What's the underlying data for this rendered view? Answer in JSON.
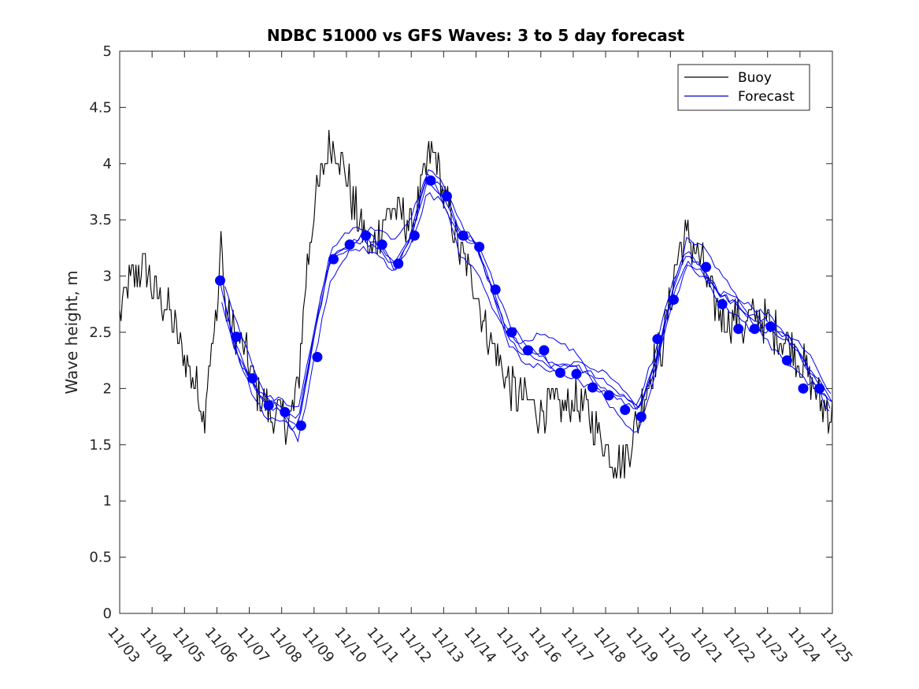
{
  "chart_data": {
    "type": "line",
    "title": "NDBC 51000 vs GFS Waves: 3 to 5 day forecast",
    "xlabel": "",
    "ylabel": "Wave height, m",
    "xlim": [
      0,
      22
    ],
    "ylim": [
      0,
      5
    ],
    "x_ticks": [
      0,
      1,
      2,
      3,
      4,
      5,
      6,
      7,
      8,
      9,
      10,
      11,
      12,
      13,
      14,
      15,
      16,
      17,
      18,
      19,
      20,
      21,
      22
    ],
    "x_tick_labels": [
      "11/03",
      "11/04",
      "11/05",
      "11/06",
      "11/07",
      "11/08",
      "11/09",
      "11/10",
      "11/11",
      "11/12",
      "11/13",
      "11/14",
      "11/15",
      "11/16",
      "11/17",
      "11/18",
      "11/19",
      "11/20",
      "11/21",
      "11/22",
      "11/23",
      "11/24",
      "11/25"
    ],
    "y_ticks": [
      0,
      0.5,
      1,
      1.5,
      2,
      2.5,
      3,
      3.5,
      4,
      4.5,
      5
    ],
    "y_tick_labels": [
      "0",
      "0.5",
      "1",
      "1.5",
      "2",
      "2.5",
      "3",
      "3.5",
      "4",
      "4.5",
      "5"
    ],
    "legend": {
      "position": "top-right",
      "entries": [
        {
          "name": "Buoy",
          "color": "#000000"
        },
        {
          "name": "Forecast",
          "color": "#0000cc"
        }
      ]
    },
    "buoy_color": "#000000",
    "forecast_color": "#0000ee",
    "marker_color": "#0000ff",
    "series": [
      {
        "name": "Buoy",
        "x": [
          0,
          0.25,
          0.5,
          0.75,
          1,
          1.25,
          1.5,
          1.75,
          2,
          2.25,
          2.5,
          2.6,
          2.75,
          3,
          3.05,
          3.1,
          3.25,
          3.5,
          3.75,
          4,
          4.25,
          4.5,
          4.75,
          5,
          5.25,
          5.5,
          5.75,
          6,
          6.25,
          6.5,
          6.75,
          7,
          7.25,
          7.5,
          7.75,
          8,
          8.25,
          8.5,
          8.75,
          9,
          9.25,
          9.5,
          9.75,
          10,
          10.25,
          10.5,
          10.75,
          11,
          11.25,
          11.5,
          11.75,
          12,
          12.25,
          12.5,
          12.75,
          13,
          13.25,
          13.5,
          13.75,
          14,
          14.25,
          14.5,
          14.75,
          15,
          15.25,
          15.5,
          15.75,
          16,
          16.25,
          16.5,
          16.75,
          17,
          17.25,
          17.5,
          17.75,
          18,
          18.25,
          18.5,
          18.75,
          19,
          19.25,
          19.5,
          19.75,
          20,
          20.25,
          20.5,
          20.75,
          21,
          21.25,
          21.5,
          21.75,
          22
        ],
        "values": [
          2.6,
          2.9,
          3.0,
          3.1,
          2.9,
          2.8,
          2.7,
          2.5,
          2.3,
          2.1,
          1.9,
          1.75,
          2.2,
          2.6,
          2.8,
          3.55,
          2.7,
          2.5,
          2.4,
          2.2,
          2.0,
          1.85,
          1.75,
          1.75,
          1.7,
          2.0,
          3.0,
          3.6,
          3.9,
          4.2,
          4.1,
          3.9,
          3.6,
          3.4,
          3.2,
          3.4,
          3.55,
          3.6,
          3.55,
          3.45,
          3.7,
          4.0,
          4.1,
          3.7,
          3.5,
          3.2,
          3.05,
          2.9,
          2.6,
          2.4,
          2.2,
          2.05,
          1.95,
          1.9,
          1.85,
          1.8,
          1.85,
          1.85,
          1.8,
          1.9,
          1.85,
          1.75,
          1.6,
          1.5,
          1.4,
          1.35,
          1.5,
          1.7,
          2.0,
          2.2,
          2.4,
          2.8,
          3.2,
          3.35,
          3.25,
          3.1,
          2.8,
          2.7,
          2.6,
          2.65,
          2.55,
          2.6,
          2.65,
          2.55,
          2.5,
          2.45,
          2.4,
          2.25,
          2.1,
          1.95,
          1.85,
          1.8
        ]
      },
      {
        "name": "Forecast",
        "x": [
          3.1,
          3.5,
          4.0,
          4.5,
          5.0,
          5.5,
          5.9,
          6.1,
          6.5,
          7.0,
          7.5,
          8.0,
          8.5,
          9.0,
          9.5,
          10.0,
          10.5,
          11.0,
          11.5,
          12.0,
          12.5,
          13.0,
          13.5,
          14.0,
          14.5,
          15.0,
          15.5,
          16.0,
          16.5,
          17.0,
          17.5,
          18.0,
          18.5,
          19.0,
          19.5,
          20.0,
          20.5,
          21.0,
          21.5,
          22.0
        ],
        "values": [
          2.96,
          2.46,
          2.09,
          1.85,
          1.79,
          1.67,
          2.28,
          2.6,
          3.15,
          3.28,
          3.36,
          3.28,
          3.11,
          3.36,
          3.85,
          3.71,
          3.36,
          3.26,
          2.88,
          2.5,
          2.34,
          2.3,
          2.2,
          2.2,
          2.1,
          2.0,
          1.9,
          1.8,
          2.2,
          2.79,
          3.2,
          3.08,
          2.85,
          2.75,
          2.6,
          2.55,
          2.45,
          2.3,
          2.1,
          1.85
        ]
      }
    ],
    "markers": {
      "x": [
        3.1,
        3.6,
        4.1,
        4.6,
        5.1,
        5.6,
        6.1,
        6.6,
        7.1,
        7.6,
        8.1,
        8.6,
        9.1,
        9.6,
        10.1,
        10.6,
        11.1,
        11.6,
        12.1,
        12.6,
        13.1,
        13.6,
        14.1,
        14.6,
        15.1,
        15.6,
        16.1,
        16.6,
        17.1,
        18.1,
        18.6,
        19.1,
        19.6,
        20.1,
        20.6,
        21.1,
        21.6
      ],
      "values": [
        2.96,
        2.46,
        2.09,
        1.85,
        1.79,
        1.67,
        2.28,
        3.15,
        3.28,
        3.36,
        3.28,
        3.11,
        3.36,
        3.85,
        3.71,
        3.36,
        3.26,
        2.88,
        2.5,
        2.34,
        2.34,
        2.14,
        2.13,
        2.01,
        1.94,
        1.81,
        1.75,
        2.44,
        2.79,
        3.08,
        2.75,
        2.53,
        2.53,
        2.55,
        2.25,
        2.0,
        2.0
      ]
    }
  }
}
